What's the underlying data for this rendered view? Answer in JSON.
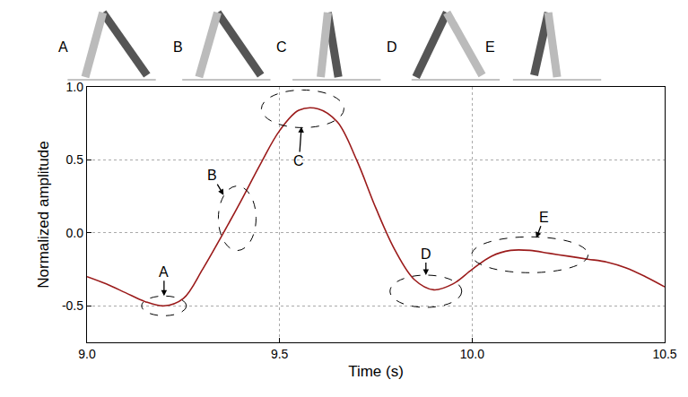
{
  "chart_data": {
    "type": "line",
    "xlabel": "Time (s)",
    "ylabel": "Normalized amplitude",
    "x": [
      9.0,
      9.05,
      9.1,
      9.15,
      9.2,
      9.25,
      9.3,
      9.35,
      9.4,
      9.45,
      9.5,
      9.55,
      9.6,
      9.65,
      9.7,
      9.75,
      9.8,
      9.85,
      9.9,
      9.95,
      10.0,
      10.05,
      10.1,
      10.15,
      10.2,
      10.25,
      10.3,
      10.35,
      10.4,
      10.45,
      10.5
    ],
    "values": [
      -0.3,
      -0.35,
      -0.41,
      -0.47,
      -0.5,
      -0.45,
      -0.25,
      -0.02,
      0.22,
      0.47,
      0.7,
      0.84,
      0.85,
      0.76,
      0.5,
      0.17,
      -0.12,
      -0.32,
      -0.39,
      -0.35,
      -0.25,
      -0.16,
      -0.12,
      -0.12,
      -0.14,
      -0.16,
      -0.18,
      -0.2,
      -0.24,
      -0.3,
      -0.37
    ],
    "color": "#9b1b1b",
    "xlim": [
      9.0,
      10.5
    ],
    "xticks": [
      {
        "value": 9.0,
        "label": "9.0"
      },
      {
        "value": 9.5,
        "label": "9.5"
      },
      {
        "value": 10.0,
        "label": "10.0"
      },
      {
        "value": 10.5,
        "label": "10.5"
      }
    ],
    "ylim": [
      -0.75,
      1.0
    ],
    "yticks": [
      -0.5,
      {
        "value": 0,
        "label": "0.0"
      },
      0.5,
      {
        "value": 1.0,
        "label": "1.0"
      }
    ],
    "grid": true,
    "annotations": [
      {
        "text": "A",
        "x": 9.2,
        "y": -0.5
      },
      {
        "text": "B",
        "x": 9.39,
        "y": 0.1
      },
      {
        "text": "C",
        "x": 9.56,
        "y": 0.85
      },
      {
        "text": "D",
        "x": 9.88,
        "y": -0.4
      },
      {
        "text": "E",
        "x": 10.15,
        "y": -0.15
      }
    ],
    "figure_labels": [
      "A",
      "B",
      "C",
      "D",
      "E"
    ]
  }
}
